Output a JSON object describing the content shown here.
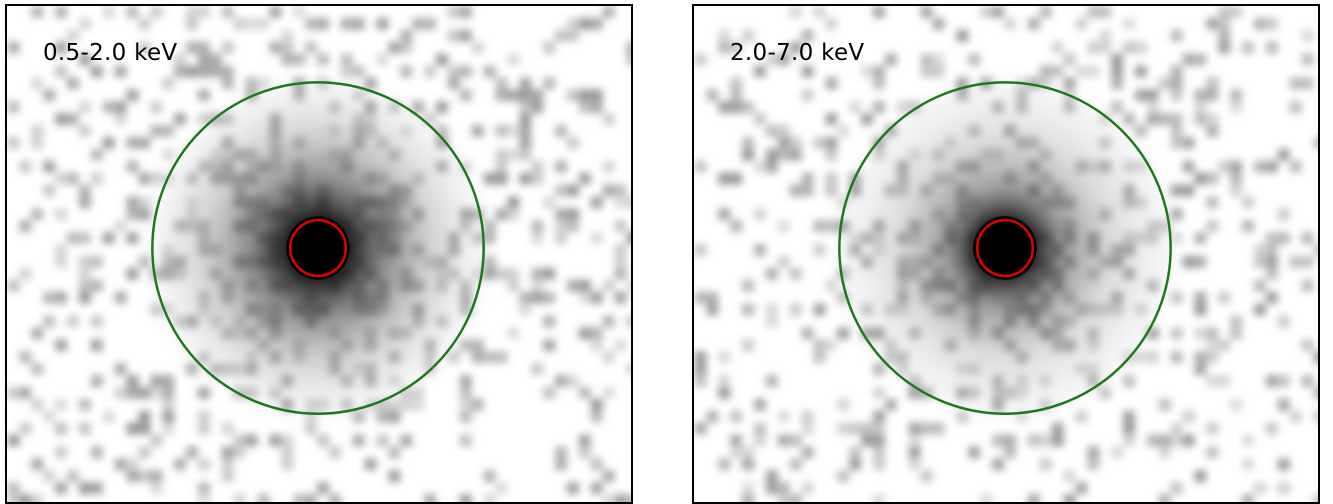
{
  "panels": [
    {
      "id": "left",
      "label": "0.5-2.0 keV",
      "seed": 17,
      "halo_strength": 0.55
    },
    {
      "id": "right",
      "label": "2.0-7.0 keV",
      "seed": 91,
      "halo_strength": 0.45
    }
  ],
  "colors": {
    "outer_aperture": "#1a7a1a",
    "inner_aperture": "#e00000",
    "background": "#ffffff",
    "source": "#000000"
  }
}
